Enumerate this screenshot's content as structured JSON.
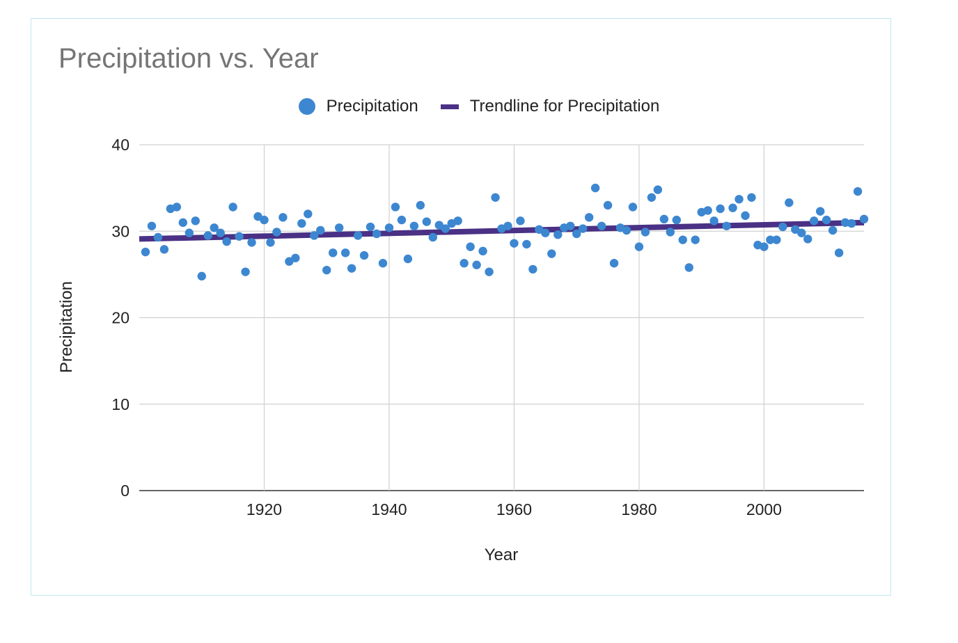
{
  "chart_data": {
    "type": "scatter",
    "title": "Precipitation vs. Year",
    "xlabel": "Year",
    "ylabel": "Precipitation",
    "xlim": [
      1900,
      2016
    ],
    "ylim": [
      0,
      40
    ],
    "x_ticks": [
      1920,
      1940,
      1960,
      1980,
      2000
    ],
    "y_ticks": [
      0,
      10,
      20,
      30,
      40
    ],
    "grid": true,
    "legend_position": "top",
    "series": [
      {
        "name": "Precipitation",
        "kind": "points",
        "color": "#3d87d1",
        "points": [
          [
            1901,
            27.6
          ],
          [
            1902,
            30.6
          ],
          [
            1903,
            29.3
          ],
          [
            1904,
            27.9
          ],
          [
            1905,
            32.6
          ],
          [
            1906,
            32.8
          ],
          [
            1907,
            31.0
          ],
          [
            1908,
            29.8
          ],
          [
            1909,
            31.2
          ],
          [
            1910,
            24.8
          ],
          [
            1911,
            29.5
          ],
          [
            1912,
            30.4
          ],
          [
            1913,
            29.8
          ],
          [
            1914,
            28.8
          ],
          [
            1915,
            32.8
          ],
          [
            1916,
            29.4
          ],
          [
            1917,
            25.3
          ],
          [
            1918,
            28.7
          ],
          [
            1919,
            31.7
          ],
          [
            1920,
            31.3
          ],
          [
            1921,
            28.7
          ],
          [
            1922,
            29.9
          ],
          [
            1923,
            31.6
          ],
          [
            1924,
            26.5
          ],
          [
            1925,
            26.9
          ],
          [
            1926,
            30.9
          ],
          [
            1927,
            32.0
          ],
          [
            1928,
            29.5
          ],
          [
            1929,
            30.1
          ],
          [
            1930,
            25.5
          ],
          [
            1931,
            27.5
          ],
          [
            1932,
            30.4
          ],
          [
            1933,
            27.5
          ],
          [
            1934,
            25.7
          ],
          [
            1935,
            29.5
          ],
          [
            1936,
            27.2
          ],
          [
            1937,
            30.5
          ],
          [
            1938,
            29.7
          ],
          [
            1939,
            26.3
          ],
          [
            1940,
            30.4
          ],
          [
            1941,
            32.8
          ],
          [
            1942,
            31.3
          ],
          [
            1943,
            26.8
          ],
          [
            1944,
            30.6
          ],
          [
            1945,
            33.0
          ],
          [
            1946,
            31.1
          ],
          [
            1947,
            29.3
          ],
          [
            1948,
            30.7
          ],
          [
            1949,
            30.3
          ],
          [
            1950,
            30.9
          ],
          [
            1951,
            31.2
          ],
          [
            1952,
            26.3
          ],
          [
            1953,
            28.2
          ],
          [
            1954,
            26.1
          ],
          [
            1955,
            27.7
          ],
          [
            1956,
            25.3
          ],
          [
            1957,
            33.9
          ],
          [
            1958,
            30.3
          ],
          [
            1959,
            30.6
          ],
          [
            1960,
            28.6
          ],
          [
            1961,
            31.2
          ],
          [
            1962,
            28.5
          ],
          [
            1963,
            25.6
          ],
          [
            1964,
            30.2
          ],
          [
            1965,
            29.8
          ],
          [
            1966,
            27.4
          ],
          [
            1967,
            29.6
          ],
          [
            1968,
            30.4
          ],
          [
            1969,
            30.6
          ],
          [
            1970,
            29.7
          ],
          [
            1971,
            30.3
          ],
          [
            1972,
            31.6
          ],
          [
            1973,
            35.0
          ],
          [
            1974,
            30.6
          ],
          [
            1975,
            33.0
          ],
          [
            1976,
            26.3
          ],
          [
            1977,
            30.4
          ],
          [
            1978,
            30.1
          ],
          [
            1979,
            32.8
          ],
          [
            1980,
            28.2
          ],
          [
            1981,
            29.9
          ],
          [
            1982,
            33.9
          ],
          [
            1983,
            34.8
          ],
          [
            1984,
            31.4
          ],
          [
            1985,
            29.9
          ],
          [
            1986,
            31.3
          ],
          [
            1987,
            29.0
          ],
          [
            1988,
            25.8
          ],
          [
            1989,
            29.0
          ],
          [
            1990,
            32.2
          ],
          [
            1991,
            32.4
          ],
          [
            1992,
            31.2
          ],
          [
            1993,
            32.6
          ],
          [
            1994,
            30.6
          ],
          [
            1995,
            32.7
          ],
          [
            1996,
            33.7
          ],
          [
            1997,
            31.8
          ],
          [
            1998,
            33.9
          ],
          [
            1999,
            28.4
          ],
          [
            2000,
            28.2
          ],
          [
            2001,
            29.0
          ],
          [
            2002,
            29.0
          ],
          [
            2003,
            30.5
          ],
          [
            2004,
            33.3
          ],
          [
            2005,
            30.2
          ],
          [
            2006,
            29.8
          ],
          [
            2007,
            29.1
          ],
          [
            2008,
            31.2
          ],
          [
            2009,
            32.3
          ],
          [
            2010,
            31.3
          ],
          [
            2011,
            30.1
          ],
          [
            2012,
            27.5
          ],
          [
            2013,
            31.0
          ],
          [
            2014,
            30.9
          ],
          [
            2015,
            34.6
          ],
          [
            2016,
            31.4
          ]
        ]
      },
      {
        "name": "Trendline for Precipitation",
        "kind": "line",
        "color": "#4a3185",
        "points": [
          [
            1900,
            29.1
          ],
          [
            2016,
            31.0
          ]
        ]
      }
    ]
  }
}
